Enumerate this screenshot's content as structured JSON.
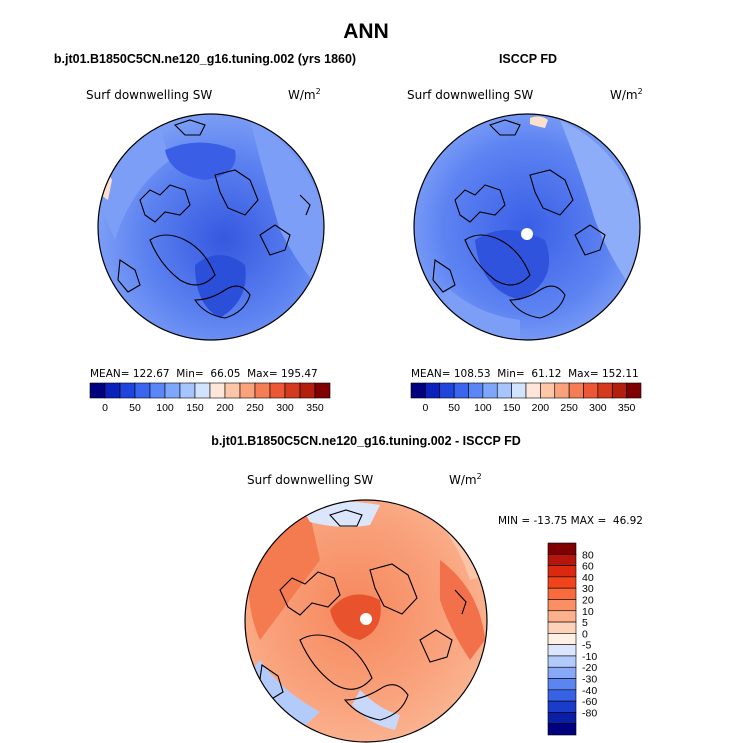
{
  "figure": {
    "main_title": "ANN",
    "bottom_title": "b.jt01.B1850C5CN.ne120_g16.tuning.002 - ISCCP FD"
  },
  "panels": [
    {
      "id": "model",
      "case_title": "b.jt01.B1850C5CN.ne120_g16.tuning.002 (yrs 1860)",
      "variable": "Surf downwelling SW",
      "units_base": "W/m",
      "units_sup": "2",
      "stats_text": "MEAN= 122.67  Min=  66.05  Max= 195.47",
      "mean": 122.67,
      "min": 66.05,
      "max": 195.47
    },
    {
      "id": "obs",
      "case_title": "ISCCP FD",
      "variable": "Surf downwelling SW",
      "units_base": "W/m",
      "units_sup": "2",
      "stats_text": "MEAN= 108.53  Min=  61.12  Max= 152.11",
      "mean": 108.53,
      "min": 61.12,
      "max": 152.11
    }
  ],
  "diff_panel": {
    "variable": "Surf downwelling SW",
    "units_base": "W/m",
    "units_sup": "2",
    "range_text": "MIN = -13.75 MAX =  46.92",
    "min": -13.75,
    "max": 46.92
  },
  "chart_data": [
    {
      "type": "heatmap",
      "title": "b.jt01.B1850C5CN.ne120_g16.tuning.002 (yrs 1860)",
      "subtitle": "Surf downwelling SW",
      "units": "W/m2",
      "projection": "polar stereographic (north)",
      "stats": {
        "mean": 122.67,
        "min": 66.05,
        "max": 195.47
      },
      "colorbar": {
        "orientation": "horizontal",
        "tick_labels": [
          "0",
          "50",
          "100",
          "150",
          "200",
          "250",
          "300",
          "350"
        ],
        "colors": [
          "#00007f",
          "#0a22bb",
          "#1f45dd",
          "#3a66ef",
          "#5b86f7",
          "#7ea6fa",
          "#a6c4fd",
          "#d2e3fe",
          "#ffe6d8",
          "#fdc6a6",
          "#f9a27c",
          "#f47d56",
          "#ec5836",
          "#d43a1d",
          "#b21f0d",
          "#7f0000"
        ]
      }
    },
    {
      "type": "heatmap",
      "title": "ISCCP FD",
      "subtitle": "Surf downwelling SW",
      "units": "W/m2",
      "projection": "polar stereographic (north)",
      "stats": {
        "mean": 108.53,
        "min": 61.12,
        "max": 152.11
      },
      "colorbar": {
        "orientation": "horizontal",
        "tick_labels": [
          "0",
          "50",
          "100",
          "150",
          "200",
          "250",
          "300",
          "350"
        ],
        "colors": [
          "#00007f",
          "#0a22bb",
          "#1f45dd",
          "#3a66ef",
          "#5b86f7",
          "#7ea6fa",
          "#a6c4fd",
          "#d2e3fe",
          "#ffe6d8",
          "#fdc6a6",
          "#f9a27c",
          "#f47d56",
          "#ec5836",
          "#d43a1d",
          "#b21f0d",
          "#7f0000"
        ]
      }
    },
    {
      "type": "heatmap",
      "title": "b.jt01.B1850C5CN.ne120_g16.tuning.002 - ISCCP FD",
      "subtitle": "Surf downwelling SW",
      "units": "W/m2",
      "projection": "polar stereographic (north)",
      "stats": {
        "min": -13.75,
        "max": 46.92
      },
      "colorbar": {
        "orientation": "vertical",
        "tick_labels": [
          "80",
          "60",
          "40",
          "30",
          "20",
          "10",
          "5",
          "0",
          "-5",
          "-10",
          "-20",
          "-30",
          "-40",
          "-60",
          "-80"
        ],
        "colors": [
          "#7f0000",
          "#b5150a",
          "#d92a10",
          "#f0441e",
          "#f96b3d",
          "#fb8e62",
          "#fcb08b",
          "#fdd2b8",
          "#fff0e6",
          "#dbe6fd",
          "#b3cbfb",
          "#88a9f7",
          "#5b86f1",
          "#3762e4",
          "#1a3ccb",
          "#0a1fa6",
          "#00007f"
        ]
      }
    }
  ],
  "palettes": {
    "abs_fill": [
      "#3d62e8",
      "#5d82f2",
      "#7c9ef6"
    ],
    "abs_accent_warm": "#fce0cc",
    "diff_fill": [
      "#f47a50",
      "#f9a27a",
      "#fcc5a8"
    ],
    "diff_accent_cool": "#c7d8fb"
  }
}
